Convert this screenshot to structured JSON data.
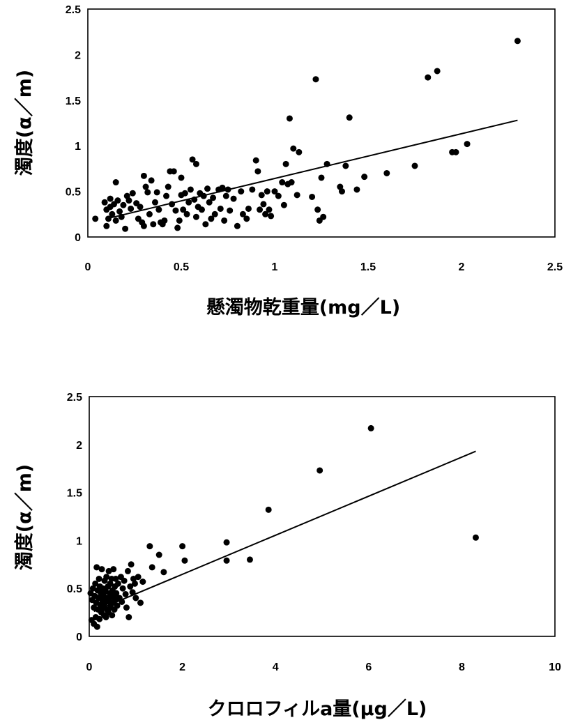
{
  "chart_data": [
    {
      "type": "scatter",
      "xlabel": "懸濁物乾重量(mg／L)",
      "ylabel": "濁度(α／m)",
      "xlim": [
        0,
        2.5
      ],
      "ylim": [
        0,
        2.5
      ],
      "xticks": [
        "0",
        "0.5",
        "1",
        "1.5",
        "2",
        "2.5"
      ],
      "yticks": [
        "0",
        "0.5",
        "1",
        "1.5",
        "2",
        "2.5"
      ],
      "grid": false,
      "trendline": {
        "x": [
          0.1,
          2.3
        ],
        "y": [
          0.2,
          1.28
        ]
      },
      "points": [
        [
          0.04,
          0.2
        ],
        [
          0.09,
          0.38
        ],
        [
          0.1,
          0.3
        ],
        [
          0.1,
          0.12
        ],
        [
          0.11,
          0.2
        ],
        [
          0.12,
          0.33
        ],
        [
          0.12,
          0.42
        ],
        [
          0.13,
          0.25
        ],
        [
          0.14,
          0.36
        ],
        [
          0.15,
          0.6
        ],
        [
          0.15,
          0.18
        ],
        [
          0.16,
          0.4
        ],
        [
          0.17,
          0.28
        ],
        [
          0.18,
          0.22
        ],
        [
          0.19,
          0.35
        ],
        [
          0.2,
          0.09
        ],
        [
          0.21,
          0.45
        ],
        [
          0.22,
          0.4
        ],
        [
          0.23,
          0.31
        ],
        [
          0.24,
          0.48
        ],
        [
          0.26,
          0.37
        ],
        [
          0.27,
          0.2
        ],
        [
          0.28,
          0.33
        ],
        [
          0.29,
          0.16
        ],
        [
          0.3,
          0.67
        ],
        [
          0.3,
          0.12
        ],
        [
          0.31,
          0.55
        ],
        [
          0.32,
          0.49
        ],
        [
          0.33,
          0.25
        ],
        [
          0.34,
          0.62
        ],
        [
          0.35,
          0.14
        ],
        [
          0.36,
          0.38
        ],
        [
          0.37,
          0.49
        ],
        [
          0.38,
          0.3
        ],
        [
          0.39,
          0.16
        ],
        [
          0.4,
          0.14
        ],
        [
          0.41,
          0.18
        ],
        [
          0.42,
          0.45
        ],
        [
          0.43,
          0.55
        ],
        [
          0.44,
          0.72
        ],
        [
          0.45,
          0.36
        ],
        [
          0.46,
          0.72
        ],
        [
          0.47,
          0.29
        ],
        [
          0.48,
          0.1
        ],
        [
          0.49,
          0.18
        ],
        [
          0.5,
          0.46
        ],
        [
          0.5,
          0.65
        ],
        [
          0.51,
          0.3
        ],
        [
          0.52,
          0.48
        ],
        [
          0.53,
          0.25
        ],
        [
          0.54,
          0.38
        ],
        [
          0.55,
          0.52
        ],
        [
          0.56,
          0.85
        ],
        [
          0.57,
          0.41
        ],
        [
          0.58,
          0.8
        ],
        [
          0.58,
          0.22
        ],
        [
          0.59,
          0.33
        ],
        [
          0.6,
          0.48
        ],
        [
          0.61,
          0.3
        ],
        [
          0.62,
          0.45
        ],
        [
          0.63,
          0.14
        ],
        [
          0.64,
          0.53
        ],
        [
          0.65,
          0.38
        ],
        [
          0.66,
          0.2
        ],
        [
          0.67,
          0.43
        ],
        [
          0.68,
          0.25
        ],
        [
          0.7,
          0.52
        ],
        [
          0.71,
          0.31
        ],
        [
          0.72,
          0.54
        ],
        [
          0.73,
          0.18
        ],
        [
          0.74,
          0.45
        ],
        [
          0.75,
          0.52
        ],
        [
          0.76,
          0.29
        ],
        [
          0.78,
          0.42
        ],
        [
          0.8,
          0.12
        ],
        [
          0.82,
          0.5
        ],
        [
          0.83,
          0.25
        ],
        [
          0.85,
          0.2
        ],
        [
          0.86,
          0.31
        ],
        [
          0.88,
          0.52
        ],
        [
          0.9,
          0.84
        ],
        [
          0.91,
          0.72
        ],
        [
          0.92,
          0.3
        ],
        [
          0.93,
          0.46
        ],
        [
          0.94,
          0.36
        ],
        [
          0.95,
          0.25
        ],
        [
          0.96,
          0.5
        ],
        [
          0.97,
          0.3
        ],
        [
          0.98,
          0.23
        ],
        [
          1.0,
          0.5
        ],
        [
          1.02,
          0.45
        ],
        [
          1.04,
          0.6
        ],
        [
          1.05,
          0.35
        ],
        [
          1.06,
          0.8
        ],
        [
          1.07,
          0.58
        ],
        [
          1.08,
          1.3
        ],
        [
          1.09,
          0.6
        ],
        [
          1.1,
          0.97
        ],
        [
          1.12,
          0.46
        ],
        [
          1.13,
          0.93
        ],
        [
          1.2,
          0.44
        ],
        [
          1.22,
          1.73
        ],
        [
          1.23,
          0.3
        ],
        [
          1.24,
          0.18
        ],
        [
          1.25,
          0.65
        ],
        [
          1.26,
          0.22
        ],
        [
          1.28,
          0.8
        ],
        [
          1.35,
          0.55
        ],
        [
          1.36,
          0.5
        ],
        [
          1.38,
          0.78
        ],
        [
          1.4,
          1.31
        ],
        [
          1.44,
          0.52
        ],
        [
          1.48,
          0.66
        ],
        [
          1.6,
          0.7
        ],
        [
          1.75,
          0.78
        ],
        [
          1.82,
          1.75
        ],
        [
          1.87,
          1.82
        ],
        [
          1.95,
          0.93
        ],
        [
          1.97,
          0.93
        ],
        [
          2.03,
          1.02
        ],
        [
          2.3,
          2.15
        ]
      ]
    },
    {
      "type": "scatter",
      "xlabel": "クロロフィルa量(μg／L)",
      "ylabel": "濁度(α／m)",
      "xlim": [
        0,
        10
      ],
      "ylim": [
        0,
        2.5
      ],
      "xticks": [
        "0",
        "2",
        "4",
        "6",
        "8",
        "10"
      ],
      "yticks": [
        "0",
        "0.5",
        "1",
        "1.5",
        "2",
        "2.5"
      ],
      "grid": false,
      "trendline": {
        "x": [
          0.1,
          8.3
        ],
        "y": [
          0.26,
          1.93
        ]
      },
      "points": [
        [
          0.03,
          0.45
        ],
        [
          0.05,
          0.17
        ],
        [
          0.06,
          0.38
        ],
        [
          0.08,
          0.5
        ],
        [
          0.1,
          0.13
        ],
        [
          0.1,
          0.3
        ],
        [
          0.12,
          0.42
        ],
        [
          0.13,
          0.55
        ],
        [
          0.14,
          0.2
        ],
        [
          0.15,
          0.35
        ],
        [
          0.16,
          0.72
        ],
        [
          0.17,
          0.1
        ],
        [
          0.18,
          0.48
        ],
        [
          0.19,
          0.28
        ],
        [
          0.2,
          0.4
        ],
        [
          0.21,
          0.6
        ],
        [
          0.22,
          0.18
        ],
        [
          0.23,
          0.52
        ],
        [
          0.24,
          0.33
        ],
        [
          0.25,
          0.45
        ],
        [
          0.26,
          0.25
        ],
        [
          0.27,
          0.7
        ],
        [
          0.28,
          0.38
        ],
        [
          0.29,
          0.5
        ],
        [
          0.3,
          0.3
        ],
        [
          0.31,
          0.42
        ],
        [
          0.32,
          0.22
        ],
        [
          0.33,
          0.58
        ],
        [
          0.34,
          0.35
        ],
        [
          0.35,
          0.47
        ],
        [
          0.36,
          0.2
        ],
        [
          0.37,
          0.62
        ],
        [
          0.38,
          0.28
        ],
        [
          0.39,
          0.4
        ],
        [
          0.4,
          0.52
        ],
        [
          0.41,
          0.25
        ],
        [
          0.42,
          0.68
        ],
        [
          0.43,
          0.36
        ],
        [
          0.44,
          0.45
        ],
        [
          0.45,
          0.55
        ],
        [
          0.46,
          0.3
        ],
        [
          0.47,
          0.41
        ],
        [
          0.48,
          0.6
        ],
        [
          0.49,
          0.22
        ],
        [
          0.5,
          0.48
        ],
        [
          0.51,
          0.35
        ],
        [
          0.52,
          0.7
        ],
        [
          0.53,
          0.42
        ],
        [
          0.54,
          0.28
        ],
        [
          0.55,
          0.52
        ],
        [
          0.56,
          0.38
        ],
        [
          0.57,
          0.6
        ],
        [
          0.58,
          0.45
        ],
        [
          0.6,
          0.32
        ],
        [
          0.62,
          0.55
        ],
        [
          0.65,
          0.4
        ],
        [
          0.68,
          0.62
        ],
        [
          0.7,
          0.36
        ],
        [
          0.72,
          0.5
        ],
        [
          0.75,
          0.58
        ],
        [
          0.78,
          0.44
        ],
        [
          0.8,
          0.3
        ],
        [
          0.83,
          0.68
        ],
        [
          0.85,
          0.2
        ],
        [
          0.88,
          0.52
        ],
        [
          0.9,
          0.75
        ],
        [
          0.93,
          0.46
        ],
        [
          0.95,
          0.6
        ],
        [
          0.98,
          0.55
        ],
        [
          1.0,
          0.4
        ],
        [
          1.05,
          0.62
        ],
        [
          1.1,
          0.35
        ],
        [
          1.15,
          0.57
        ],
        [
          1.3,
          0.94
        ],
        [
          1.35,
          0.72
        ],
        [
          1.5,
          0.85
        ],
        [
          1.6,
          0.67
        ],
        [
          2.0,
          0.94
        ],
        [
          2.05,
          0.79
        ],
        [
          2.95,
          0.79
        ],
        [
          2.95,
          0.98
        ],
        [
          3.45,
          0.8
        ],
        [
          3.85,
          1.32
        ],
        [
          4.95,
          1.73
        ],
        [
          6.05,
          2.17
        ],
        [
          8.3,
          1.03
        ]
      ]
    }
  ]
}
